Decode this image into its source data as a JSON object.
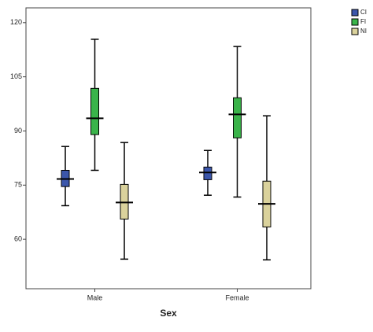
{
  "chart_data": {
    "type": "boxplot",
    "x_label": "Sex",
    "categories": [
      "Male",
      "Female"
    ],
    "series": [
      {
        "name": "CI",
        "color": "#3b56ab",
        "min": [
          69.3,
          72.2
        ],
        "q1": [
          74.6,
          76.5
        ],
        "median": [
          76.7,
          78.5
        ],
        "q3": [
          79.1,
          80.0
        ],
        "max": [
          85.7,
          84.6
        ]
      },
      {
        "name": "FI",
        "color": "#3ab44a",
        "min": [
          79.1,
          71.7
        ],
        "q1": [
          89.0,
          88.1
        ],
        "median": [
          93.5,
          94.6
        ],
        "q3": [
          101.8,
          99.2
        ],
        "max": [
          115.4,
          113.4
        ]
      },
      {
        "name": "NI",
        "color": "#dad29c",
        "min": [
          54.5,
          54.3
        ],
        "q1": [
          65.6,
          63.4
        ],
        "median": [
          70.2,
          69.8
        ],
        "q3": [
          75.2,
          76.1
        ],
        "max": [
          86.8,
          94.2
        ]
      }
    ],
    "ylim": [
      46.3,
      124.1
    ],
    "yticks": [
      60,
      75,
      90,
      105,
      120
    ],
    "grid": false,
    "legend": "top-right"
  }
}
